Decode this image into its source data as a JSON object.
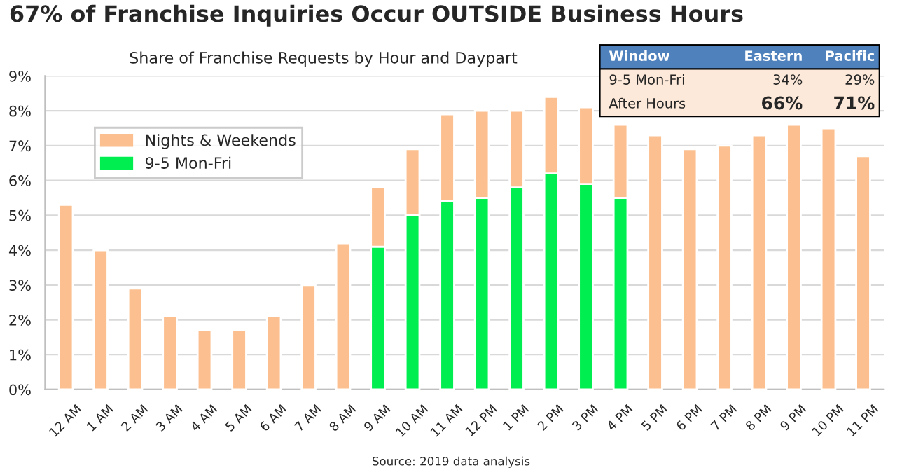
{
  "chart_data": {
    "type": "bar",
    "stacked": true,
    "title": "67% of Franchise Inquiries Occur OUTSIDE Business Hours",
    "subtitle": "Share of Franchise Requests by Hour and Daypart",
    "categories": [
      "12 AM",
      "1 AM",
      "2 AM",
      "3 AM",
      "4 AM",
      "5 AM",
      "6 AM",
      "7 AM",
      "8 AM",
      "9 AM",
      "10 AM",
      "11 AM",
      "12 PM",
      "1 PM",
      "2 PM",
      "3 PM",
      "4 PM",
      "5 PM",
      "6 PM",
      "7 PM",
      "8 PM",
      "9 PM",
      "10 PM",
      "11 PM"
    ],
    "series": [
      {
        "name": "9-5 Mon-Fri",
        "color": "#00ee50",
        "values": [
          0,
          0,
          0,
          0,
          0,
          0,
          0,
          0,
          0,
          4.1,
          5.0,
          5.4,
          5.5,
          5.8,
          6.2,
          5.9,
          5.5,
          0,
          0,
          0,
          0,
          0,
          0,
          0
        ]
      },
      {
        "name": "Nights & Weekends",
        "color": "#fcc090",
        "values": [
          5.3,
          4.0,
          2.9,
          2.1,
          1.7,
          1.7,
          2.1,
          3.0,
          4.2,
          1.7,
          1.9,
          2.5,
          2.5,
          2.2,
          2.2,
          2.2,
          2.1,
          7.3,
          6.9,
          7.0,
          7.3,
          7.6,
          7.5,
          6.7
        ]
      }
    ],
    "ylim": [
      0,
      9
    ],
    "yticks": [
      {
        "value": 0,
        "label": "0%"
      },
      {
        "value": 1,
        "label": "1%"
      },
      {
        "value": 2,
        "label": "2%"
      },
      {
        "value": 3,
        "label": "3%"
      },
      {
        "value": 4,
        "label": "4%"
      },
      {
        "value": 5,
        "label": "5%"
      },
      {
        "value": 6,
        "label": "6%"
      },
      {
        "value": 7,
        "label": "7%"
      },
      {
        "value": 8,
        "label": "8%"
      },
      {
        "value": 9,
        "label": "9%"
      }
    ],
    "grid": "y",
    "legend": "top left",
    "annotations": [
      "Window",
      "Eastern",
      "Pacific",
      "9-5 Mon-Fri",
      "34%",
      "29%",
      "After Hours",
      "66%",
      "71%",
      "Source: 2019 data analysis"
    ]
  }
}
